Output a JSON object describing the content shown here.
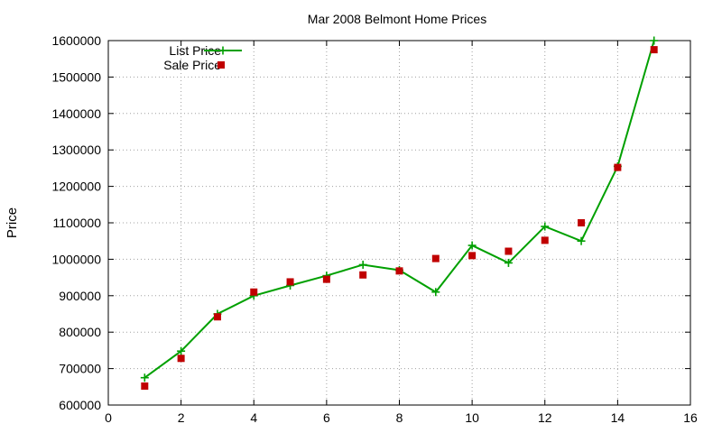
{
  "chart_data": {
    "type": "line",
    "title": "Mar 2008 Belmont Home Prices",
    "xlabel": "",
    "ylabel": "Price",
    "xlim": [
      0,
      16
    ],
    "ylim": [
      600000,
      1600000
    ],
    "xticks": [
      0,
      2,
      4,
      6,
      8,
      10,
      12,
      14,
      16
    ],
    "yticks": [
      600000,
      700000,
      800000,
      900000,
      1000000,
      1100000,
      1200000,
      1300000,
      1400000,
      1500000,
      1600000
    ],
    "grid": true,
    "legend_position": "top-left",
    "series": [
      {
        "name": "List Price",
        "style": "linespoints",
        "marker": "plus",
        "color": "#00a000",
        "x": [
          1,
          2,
          3,
          4,
          5,
          6,
          7,
          8,
          9,
          10,
          11,
          12,
          13,
          14,
          15
        ],
        "y": [
          675000,
          748000,
          850000,
          900000,
          928000,
          955000,
          985000,
          970000,
          910000,
          1038000,
          990000,
          1090000,
          1050000,
          1255000,
          1600000
        ]
      },
      {
        "name": "Sale Price",
        "style": "points",
        "marker": "square",
        "color": "#c00000",
        "x": [
          1,
          2,
          3,
          4,
          5,
          6,
          7,
          8,
          9,
          10,
          11,
          12,
          13,
          14,
          15
        ],
        "y": [
          652000,
          728000,
          842000,
          910000,
          938000,
          945000,
          957000,
          968000,
          1002000,
          1010000,
          1022000,
          1052000,
          1100000,
          1252000,
          1575000
        ]
      }
    ]
  }
}
